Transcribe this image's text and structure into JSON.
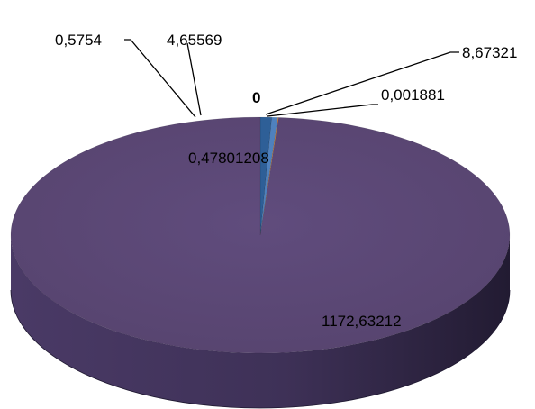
{
  "chart_data": {
    "type": "pie",
    "style": "3d",
    "categories": [
      "",
      "",
      "",
      "",
      "",
      ""
    ],
    "values": [
      8.67321,
      0.001881,
      0,
      4.65569,
      0.5754,
      1172.63212
    ],
    "labels": [
      "8,67321",
      "0,001881",
      "0",
      "4,65569",
      "0,5754",
      "1172,63212"
    ],
    "inner_label": "0,47801208",
    "colors": [
      "#2e5f97",
      "#5a7f2c",
      "#c0504d",
      "#4f81bd",
      "#e0832a",
      "#5b4775"
    ],
    "title": "",
    "legend": "none"
  }
}
